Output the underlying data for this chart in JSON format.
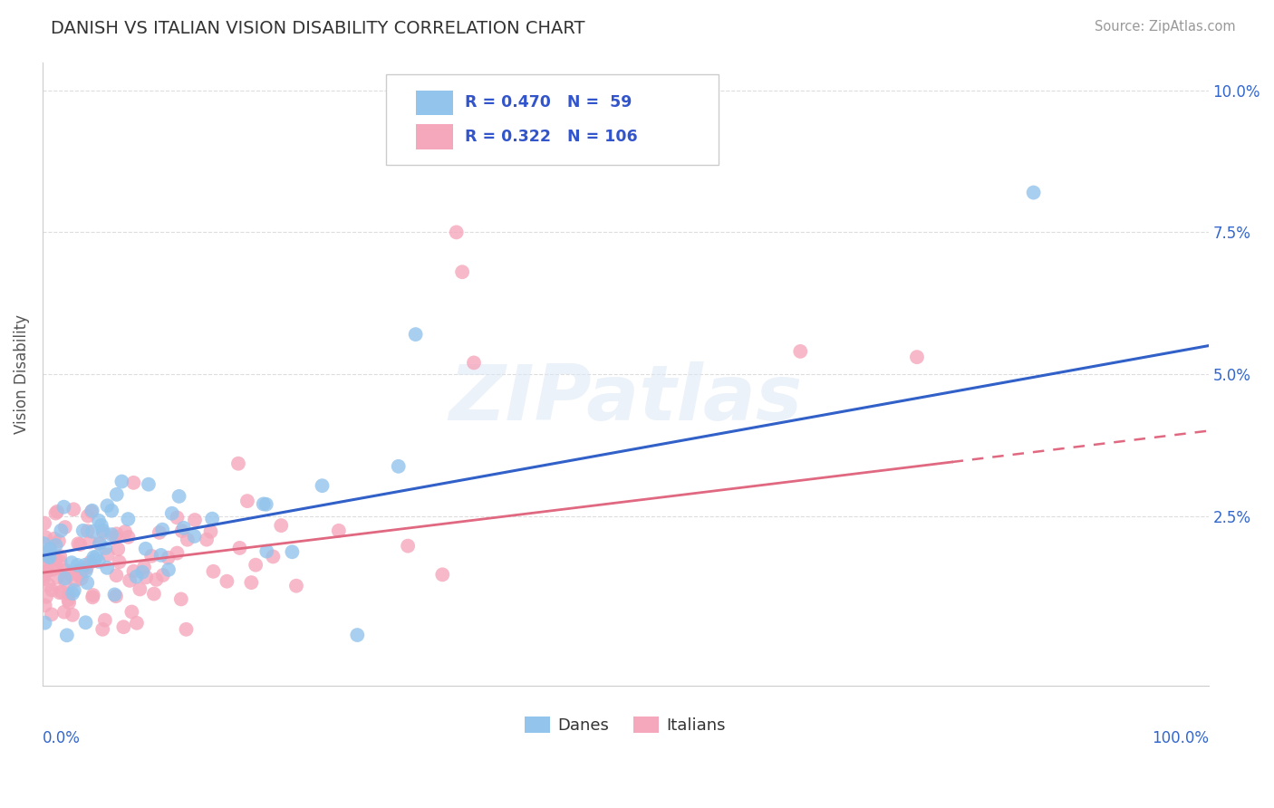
{
  "title": "DANISH VS ITALIAN VISION DISABILITY CORRELATION CHART",
  "source": "Source: ZipAtlas.com",
  "ylabel": "Vision Disability",
  "dane_R": 0.47,
  "dane_N": 59,
  "italian_R": 0.322,
  "italian_N": 106,
  "dane_color": "#93C4EC",
  "italian_color": "#F5A8BC",
  "dane_line_color": "#3060C8",
  "italian_line_color": "#E06880",
  "legend_text_color": "#3355CC",
  "background_color": "#FFFFFF",
  "xlim": [
    0,
    100
  ],
  "ylim": [
    -0.5,
    10.5
  ],
  "ytick_vals": [
    0,
    2.5,
    5.0,
    7.5,
    10.0
  ],
  "ytick_labels": [
    "",
    "2.5%",
    "5.0%",
    "7.5%",
    "10.0%"
  ],
  "dane_intercept": 1.8,
  "dane_slope": 0.037,
  "italian_intercept": 1.5,
  "italian_slope": 0.025,
  "italian_solid_end": 78,
  "watermark_text": "ZIPatlas",
  "source_color": "#999999",
  "title_color": "#333333",
  "ylabel_color": "#555555",
  "grid_color": "#DDDDDD",
  "ytick_color": "#3366CC"
}
